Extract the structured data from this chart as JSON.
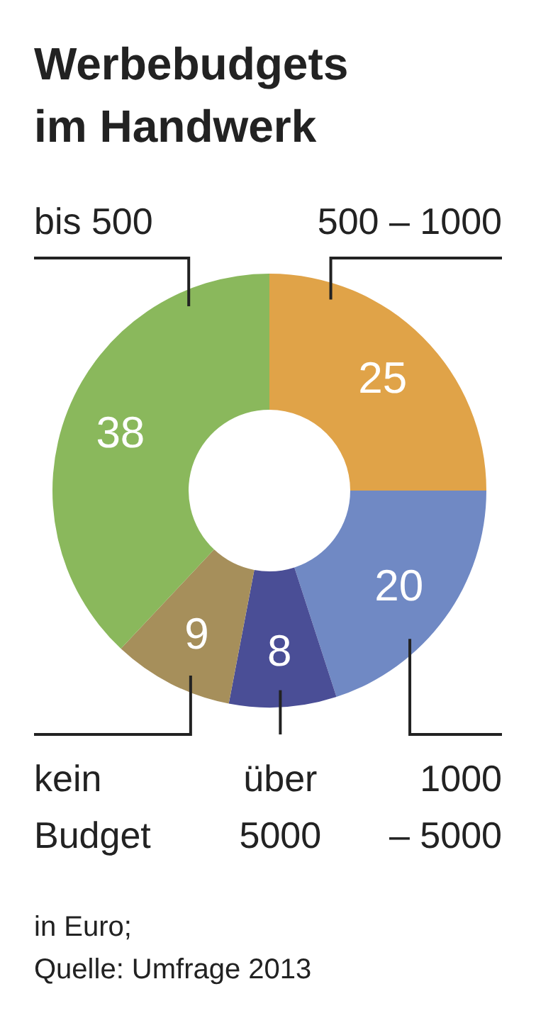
{
  "chart_data": {
    "type": "donut",
    "title": "Werbebudgets im Handwerk",
    "categories": [
      "500 – 1000",
      "1000 – 5000",
      "über 5000",
      "kein Budget",
      "bis 500"
    ],
    "values": [
      25,
      20,
      8,
      9,
      38
    ],
    "colors": [
      "#e0a348",
      "#7089c4",
      "#4a4e96",
      "#a68f5b",
      "#8ab85c"
    ],
    "data_labels": true,
    "annotations": [
      "in Euro;",
      "Quelle: Umfrage 2013"
    ]
  }
}
